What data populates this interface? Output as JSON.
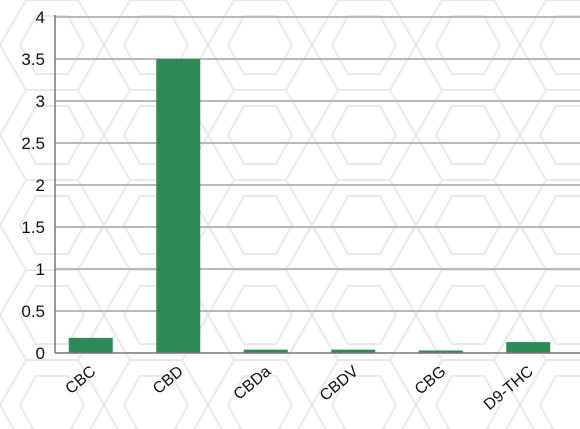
{
  "chart_data": {
    "type": "bar",
    "categories": [
      "CBC",
      "CBD",
      "CBDa",
      "CBDV",
      "CBG",
      "D9-THC"
    ],
    "values": [
      0.18,
      3.5,
      0.04,
      0.04,
      0.03,
      0.13
    ],
    "ylim": [
      0,
      4
    ],
    "yticks": [
      0,
      0.5,
      1,
      1.5,
      2,
      2.5,
      3,
      3.5,
      4
    ],
    "ytick_labels": [
      "0",
      "0.5",
      "1",
      "1.5",
      "2",
      "2.5",
      "3",
      "3.5",
      "4"
    ],
    "grid": true,
    "legend": "none",
    "colors": {
      "bar": "#2e8b57",
      "grid": "#b8b8b8",
      "axis": "#777777",
      "background_pattern": "#e9e9e9"
    }
  }
}
